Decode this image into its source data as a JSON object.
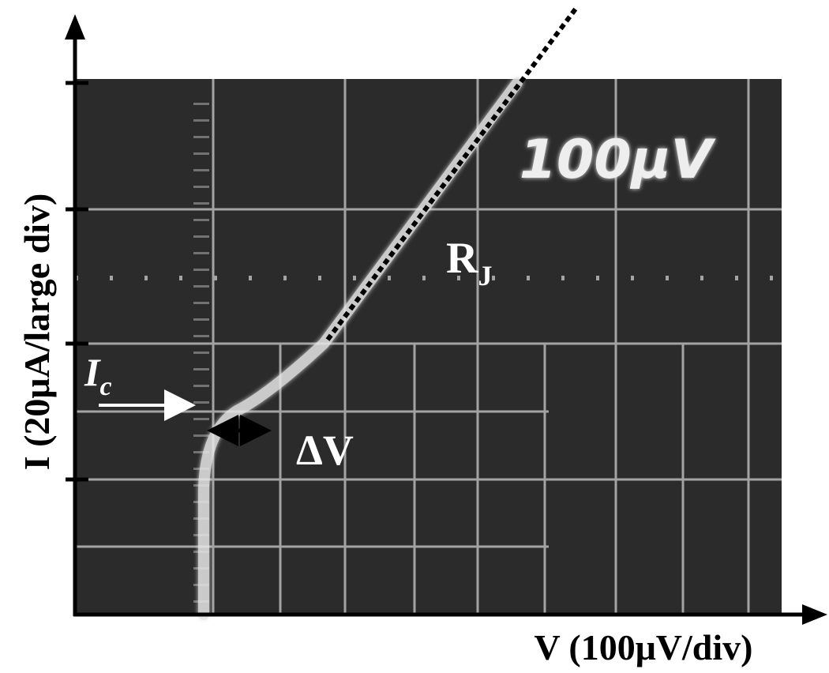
{
  "axes": {
    "y_label": "I (20μA/large div)",
    "x_label": "V (100μV/div)"
  },
  "screen": {
    "scale_label": "100μV"
  },
  "annotations": {
    "rj": {
      "main": "R",
      "sub": "J"
    },
    "ic": {
      "main": "I",
      "sub": "c"
    },
    "delta_v": "ΔV"
  }
}
